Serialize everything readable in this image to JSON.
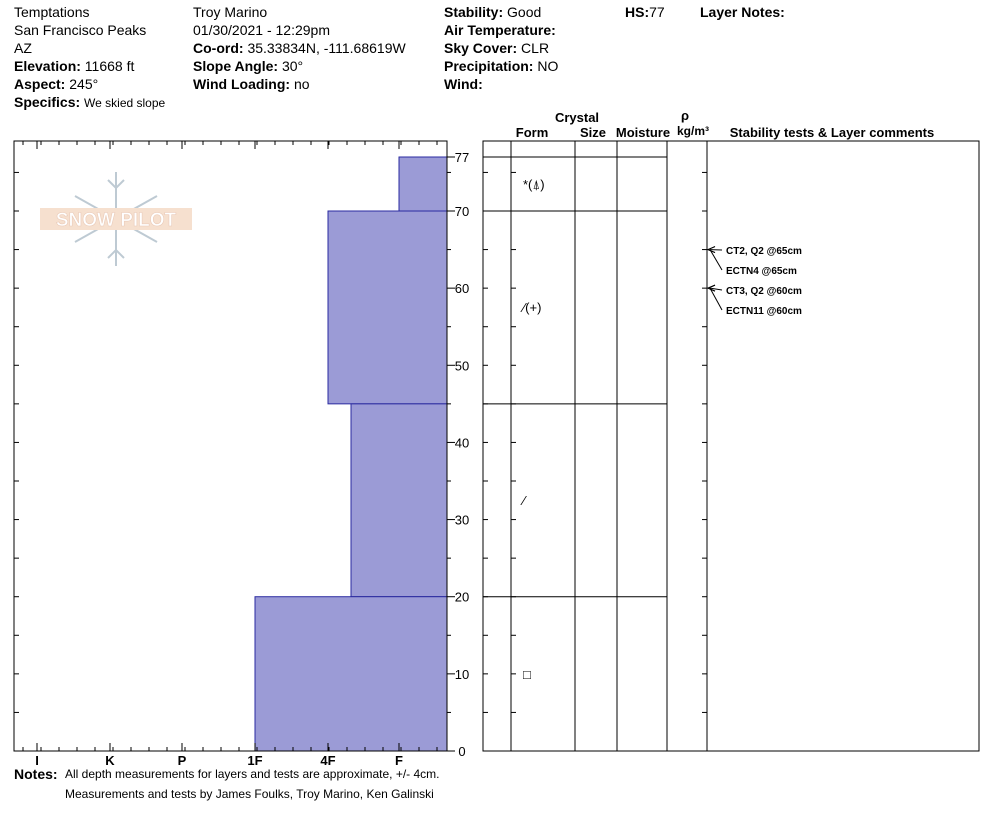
{
  "header": {
    "location_name": "Temptations",
    "range": "San Francisco Peaks",
    "state": "AZ",
    "elevation_label": "Elevation:",
    "elevation_value": "11668 ft",
    "aspect_label": "Aspect:",
    "aspect_value": "245°",
    "specifics_label": "Specifics:",
    "specifics_value": "We skied slope",
    "observer": "Troy Marino",
    "datetime": "01/30/2021 - 12:29pm",
    "coord_label": "Co-ord:",
    "coord_value": "35.33834N, -111.68619W",
    "slope_label": "Slope Angle:",
    "slope_value": "30°",
    "wind_loading_label": "Wind Loading:",
    "wind_loading_value": "no",
    "stability_label": "Stability:",
    "stability_value": "Good",
    "air_temp_label": "Air Temperature:",
    "sky_label": "Sky Cover:",
    "sky_value": "CLR",
    "precip_label": "Precipitation:",
    "precip_value": "NO",
    "wind_label": "Wind:",
    "hs_label": "HS:",
    "hs_value": "77",
    "layer_notes_label": "Layer Notes:"
  },
  "logo": {
    "text": "SNOW PILOT"
  },
  "columns": {
    "crystal": "Crystal",
    "form": "Form",
    "size": "Size",
    "moisture": "Moisture",
    "rho": "ρ",
    "density_unit": "kg/m³",
    "comments": "Stability tests & Layer comments"
  },
  "notes": {
    "label": "Notes:",
    "line1": "All depth measurements for layers and tests are approximate, +/- 4cm.",
    "line2": "Measurements and tests by James Foulks, Troy Marino, Ken Galinski"
  },
  "chart_data": {
    "type": "bar",
    "title": "",
    "hardness_scale": [
      "I",
      "K",
      "P",
      "1F",
      "4F",
      "F"
    ],
    "depth_range": [
      0,
      80
    ],
    "depth_ticks": [
      0,
      10,
      20,
      30,
      40,
      50,
      60,
      70,
      77
    ],
    "bar_color": "#9b9bd6",
    "layers": [
      {
        "top": 77,
        "bottom": 70,
        "hardness": "F",
        "form": "*(⍋)"
      },
      {
        "top": 70,
        "bottom": 45,
        "hardness": "4F",
        "form": "⁄(+)"
      },
      {
        "top": 45,
        "bottom": 20,
        "hardness": "4F-F",
        "form": "⁄"
      },
      {
        "top": 20,
        "bottom": 0,
        "hardness": "1F",
        "form": "□"
      }
    ],
    "tests": [
      {
        "label": "CT2, Q2 @65cm",
        "depth": 65
      },
      {
        "label": "ECTN4 @65cm",
        "depth": 65
      },
      {
        "label": "CT3, Q2 @60cm",
        "depth": 60
      },
      {
        "label": "ECTN11 @60cm",
        "depth": 60
      }
    ]
  }
}
